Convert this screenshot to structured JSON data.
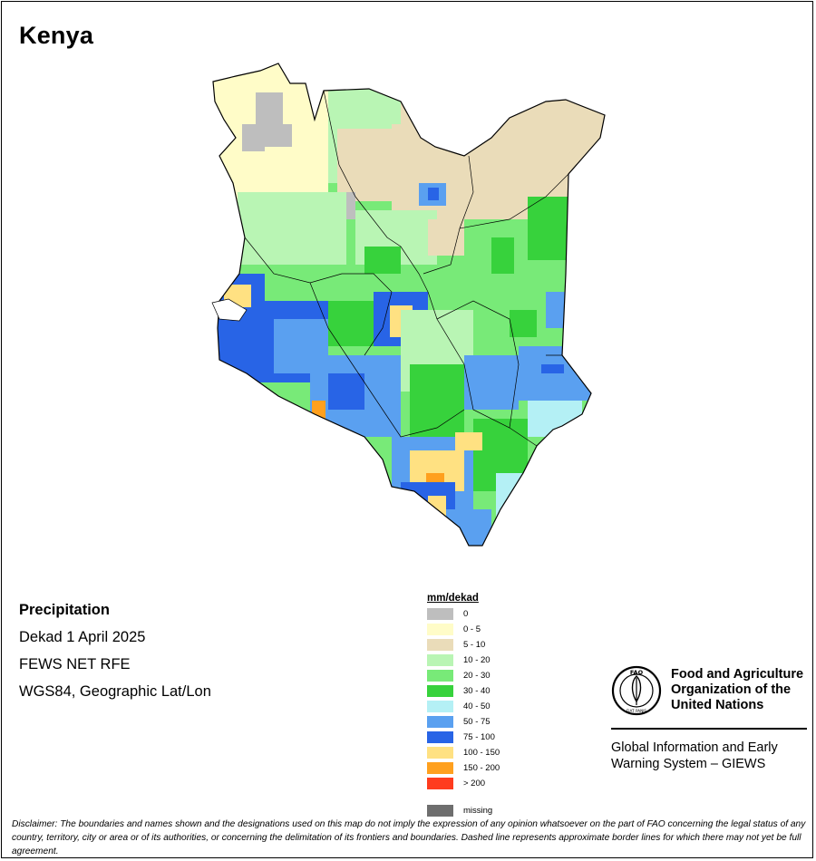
{
  "title": "Kenya",
  "info": {
    "heading": "Precipitation",
    "period": "Dekad 1 April 2025",
    "source": "FEWS NET RFE",
    "projection": "WGS84, Geographic Lat/Lon"
  },
  "legend": {
    "unit": "mm/dekad",
    "classes": [
      {
        "label": "0",
        "color": "#bebebe"
      },
      {
        "label": "0 - 5",
        "color": "#fffcc8"
      },
      {
        "label": "5 - 10",
        "color": "#eadcb9"
      },
      {
        "label": "10 - 20",
        "color": "#b9f5b4"
      },
      {
        "label": "20 - 30",
        "color": "#78ea78"
      },
      {
        "label": "30 - 40",
        "color": "#37d23c"
      },
      {
        "label": "40 - 50",
        "color": "#b4f0f5"
      },
      {
        "label": "50 - 75",
        "color": "#5aa0f0"
      },
      {
        "label": "75 - 100",
        "color": "#2864e6"
      },
      {
        "label": "100 - 150",
        "color": "#ffe182"
      },
      {
        "label": "150 - 200",
        "color": "#ffa01e"
      },
      {
        "label": "> 200",
        "color": "#ff3c1e"
      }
    ],
    "missing": {
      "label": "missing",
      "color": "#6e6e6e"
    }
  },
  "fao": {
    "org_name": "Food and Agriculture Organization of the United Nations",
    "program": "Global Information and Early Warning System – GIEWS",
    "logo_text": "FAO",
    "logo_motto": "FIAT PANIS"
  },
  "disclaimer": "Disclaimer: The boundaries and names shown and the designations used on this map do not imply the expression of any opinion whatsoever on the part of FAO concerning the legal status of any country, territory, city or area or of its authorities, or concerning the delimitation of its frontiers and boundaries. Dashed line represents approximate border lines for which there may not yet be full agreement."
}
